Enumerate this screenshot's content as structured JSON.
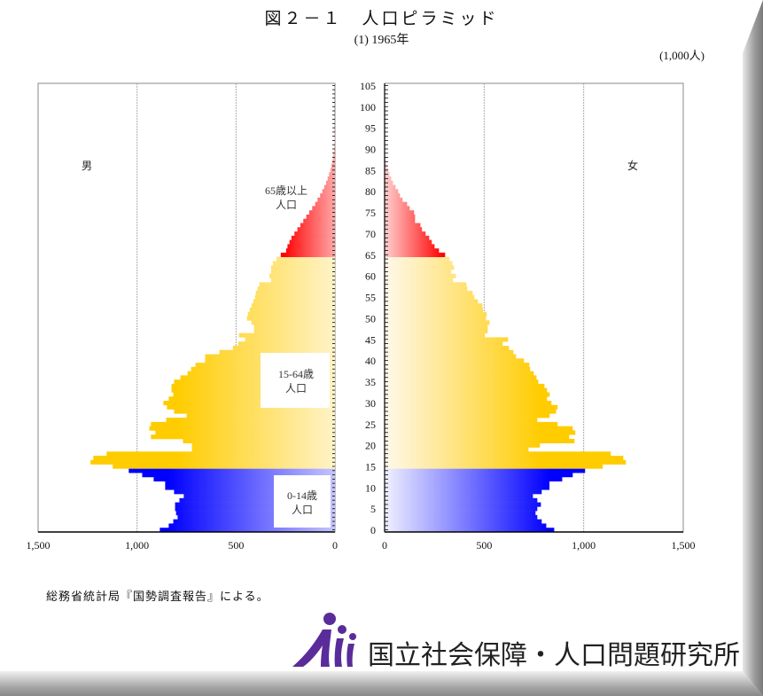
{
  "header": {
    "title": "図２－１　人口ピラミッド",
    "subtitle": "(1) 1965年",
    "unit": "(1,000人)"
  },
  "footer": {
    "source": "総務省統計局『国勢調査報告』による。",
    "logo_text": "国立社会保障・人口問題研究所"
  },
  "colors": {
    "young": "#0000FF",
    "working": "#FFCC00",
    "old": "#FF0000"
  },
  "chart_data": {
    "type": "bar",
    "orientation": "horizontal-pyramid",
    "title": "人口ピラミッド (1) 1965年",
    "unit": "(1,000人)",
    "male_label": "男",
    "female_label": "女",
    "group_labels": {
      "old": [
        "65歳以上",
        "人口"
      ],
      "working": [
        "15-64歳",
        "人口"
      ],
      "young": [
        "0-14歳",
        "人口"
      ]
    },
    "ylim": [
      0,
      105
    ],
    "xlim": [
      0,
      1500
    ],
    "age_ticks": [
      "0",
      "5",
      "10",
      "15",
      "20",
      "25",
      "30",
      "35",
      "40",
      "45",
      "50",
      "55",
      "60",
      "65",
      "70",
      "75",
      "80",
      "85",
      "90",
      "95",
      "100",
      "105"
    ],
    "male_ticks": [
      "1,500",
      "1,000",
      "500",
      "0"
    ],
    "female_ticks": [
      "0",
      "500",
      "1,000",
      "1,500"
    ],
    "male": [
      885,
      840,
      817,
      795,
      803,
      808,
      808,
      786,
      764,
      813,
      858,
      858,
      916,
      974,
      1042,
      1123,
      1235,
      1221,
      1154,
      723,
      723,
      768,
      930,
      907,
      938,
      930,
      853,
      750,
      813,
      849,
      867,
      840,
      817,
      826,
      826,
      813,
      781,
      745,
      727,
      705,
      656,
      656,
      584,
      516,
      489,
      454,
      485,
      409,
      409,
      422,
      445,
      440,
      431,
      422,
      413,
      404,
      400,
      391,
      382,
      323,
      332,
      323,
      323,
      314,
      296,
      274,
      247,
      240,
      230,
      220,
      205,
      190,
      175,
      160,
      145,
      130,
      115,
      100,
      88,
      75,
      64,
      54,
      45,
      37,
      30,
      23,
      18,
      13,
      10,
      7,
      5,
      3,
      2,
      1.5,
      1,
      0.6,
      0.4,
      0.3,
      0.2,
      0.1,
      0.1,
      0,
      0,
      0,
      0,
      0
    ],
    "female": [
      852,
      812,
      789,
      767,
      758,
      767,
      785,
      767,
      745,
      789,
      828,
      828,
      892,
      945,
      1007,
      1096,
      1212,
      1199,
      1136,
      723,
      780,
      954,
      927,
      958,
      945,
      869,
      767,
      829,
      861,
      869,
      838,
      816,
      829,
      816,
      803,
      772,
      763,
      749,
      731,
      727,
      700,
      660,
      647,
      625,
      593,
      620,
      504,
      518,
      518,
      527,
      509,
      513,
      494,
      491,
      469,
      451,
      442,
      415,
      411,
      344,
      358,
      335,
      349,
      340,
      326,
      304,
      273,
      251,
      237,
      224,
      206,
      188,
      180,
      153,
      153,
      148,
      126,
      113,
      90,
      77,
      68,
      55,
      42,
      33,
      24,
      19,
      10,
      6,
      3,
      2,
      1.5,
      1,
      0.5,
      0.3,
      0.2,
      0.1,
      0.1,
      0,
      0,
      0,
      0,
      0,
      0,
      0,
      0,
      0
    ]
  }
}
